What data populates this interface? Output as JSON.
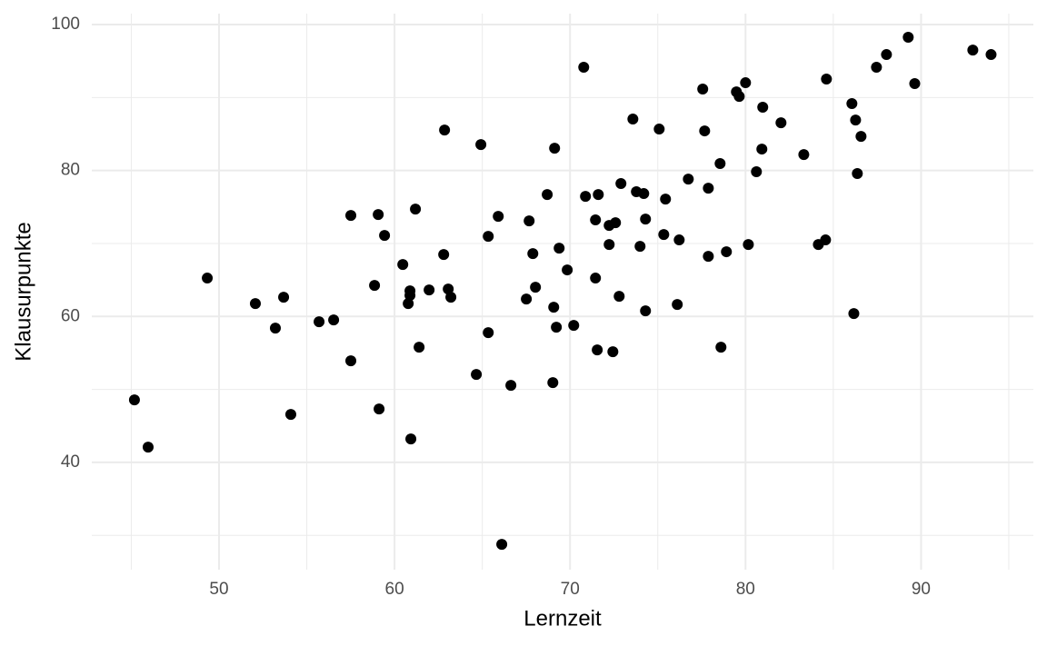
{
  "chart_data": {
    "type": "scatter",
    "xlabel": "Lernzeit",
    "ylabel": "Klausurpunkte",
    "color": "#000000",
    "grid": true,
    "xlim": [
      42.75,
      96.4
    ],
    "ylim": [
      25.3,
      101.5
    ],
    "xticks": [
      50,
      60,
      70,
      80,
      90
    ],
    "yticks": [
      40,
      60,
      80,
      100
    ],
    "x": [
      45.18,
      45.96,
      49.33,
      52.07,
      53.21,
      53.68,
      54.09,
      55.7,
      56.53,
      57.51,
      57.51,
      58.86,
      59.07,
      59.12,
      59.43,
      60.47,
      60.78,
      60.88,
      60.88,
      60.93,
      61.19,
      61.4,
      61.97,
      62.8,
      62.85,
      63.06,
      63.21,
      64.66,
      64.92,
      65.34,
      65.34,
      65.91,
      66.11,
      66.63,
      67.51,
      67.67,
      67.88,
      68.03,
      68.7,
      69.02,
      69.07,
      69.12,
      69.22,
      69.38,
      69.84,
      70.21,
      70.78,
      70.88,
      71.45,
      71.45,
      71.55,
      71.61,
      72.23,
      72.23,
      72.44,
      72.59,
      72.8,
      72.9,
      73.58,
      73.78,
      73.99,
      74.2,
      74.3,
      74.3,
      75.08,
      75.34,
      75.44,
      76.11,
      76.22,
      76.74,
      77.56,
      77.67,
      77.88,
      77.88,
      78.55,
      78.6,
      78.91,
      79.48,
      79.64,
      80.0,
      80.16,
      80.62,
      80.93,
      80.98,
      82.02,
      83.32,
      84.15,
      84.56,
      84.61,
      86.06,
      86.17,
      86.27,
      86.37,
      86.58,
      87.46,
      88.03,
      89.27,
      89.64,
      92.95,
      93.99
    ],
    "values": [
      48.57,
      42.1,
      65.26,
      61.77,
      58.41,
      62.64,
      46.58,
      59.28,
      59.53,
      73.85,
      53.92,
      64.26,
      73.97,
      47.32,
      71.11,
      67.12,
      61.77,
      63.51,
      62.89,
      43.21,
      74.72,
      55.79,
      63.64,
      68.49,
      85.55,
      63.76,
      62.64,
      52.05,
      83.56,
      57.78,
      70.98,
      73.72,
      28.77,
      50.56,
      62.39,
      73.1,
      68.62,
      64.01,
      76.71,
      50.93,
      61.27,
      83.06,
      58.53,
      69.36,
      66.38,
      58.78,
      94.15,
      76.46,
      73.23,
      65.26,
      55.42,
      76.71,
      72.48,
      69.86,
      55.17,
      72.85,
      62.76,
      78.21,
      87.05,
      77.09,
      69.61,
      76.84,
      73.35,
      60.77,
      85.68,
      71.23,
      76.09,
      61.64,
      70.49,
      78.83,
      91.16,
      85.43,
      77.58,
      68.24,
      80.95,
      55.79,
      68.87,
      90.78,
      90.16,
      92.03,
      69.86,
      79.83,
      82.94,
      88.67,
      86.55,
      82.19,
      69.86,
      70.49,
      92.53,
      89.17,
      60.4,
      86.92,
      79.58,
      84.68,
      94.15,
      95.89,
      98.26,
      91.91,
      96.51,
      95.89
    ]
  }
}
